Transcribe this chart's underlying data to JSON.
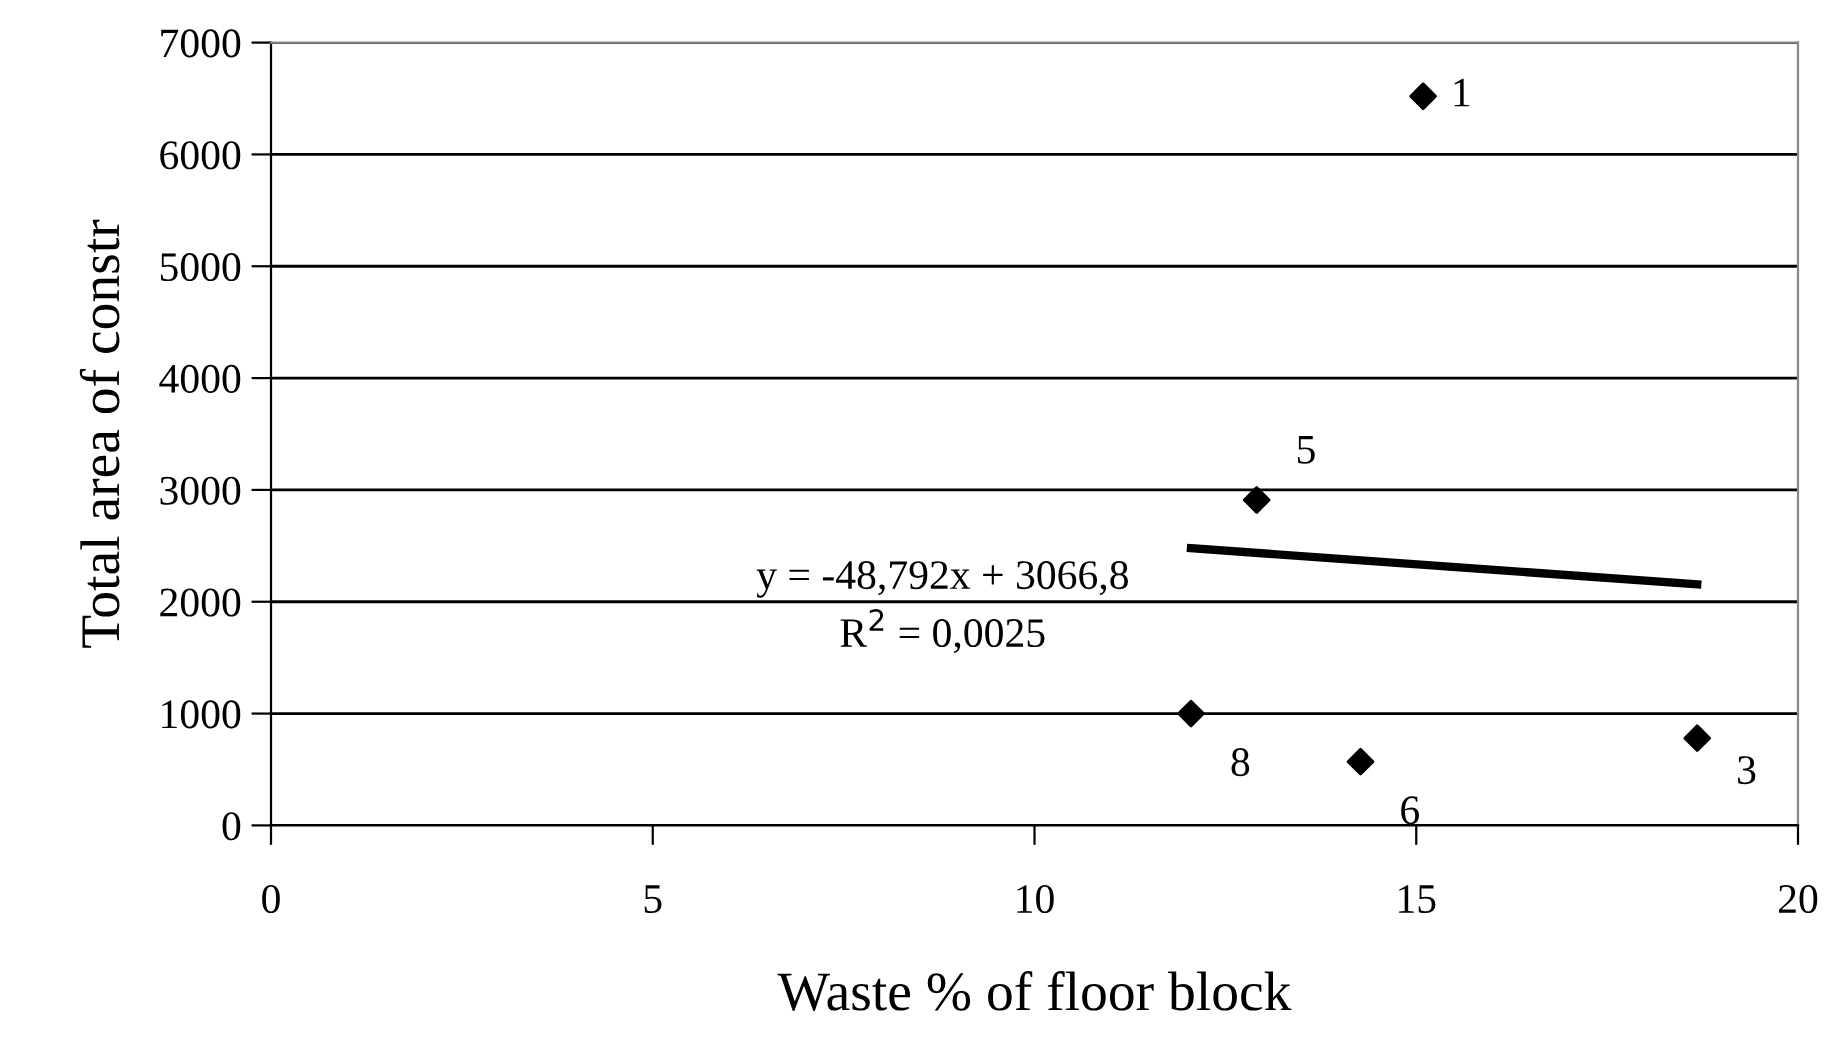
{
  "chart_data": {
    "type": "scatter",
    "xlabel": "Waste % of floor block",
    "ylabel": "Total area of constr",
    "xlim": [
      0,
      20
    ],
    "xticks": [
      0,
      5,
      10,
      15,
      20
    ],
    "ylim": [
      0,
      7000
    ],
    "yticks": [
      0,
      1000,
      2000,
      3000,
      4000,
      5000,
      6000,
      7000
    ],
    "grid": "y",
    "marker": "diamond",
    "series": [
      {
        "color": "#000000",
        "x": [
          15.09,
          12.91,
          12.05,
          14.27,
          18.68
        ],
        "values": [
          6520,
          2910,
          1000,
          570,
          780
        ]
      },
      {
        "type": "line",
        "color": "#000000",
        "marker": "none",
        "line_style": "solid",
        "x": [
          12.05,
          18.68
        ],
        "values": [
          2479,
          2155
        ]
      }
    ],
    "annotations": [
      {
        "text": "1",
        "x": 15.09,
        "y": 6520
      },
      {
        "text": "5",
        "x": 12.91,
        "y": 2910
      },
      {
        "text": "8",
        "x": 12.05,
        "y": 1000
      },
      {
        "text": "6",
        "x": 14.27,
        "y": 570
      },
      {
        "text": "3",
        "x": 18.68,
        "y": 780
      },
      "y = -48,792x + 3066,8",
      "R$^{2}$ = 0,0025"
    ]
  }
}
